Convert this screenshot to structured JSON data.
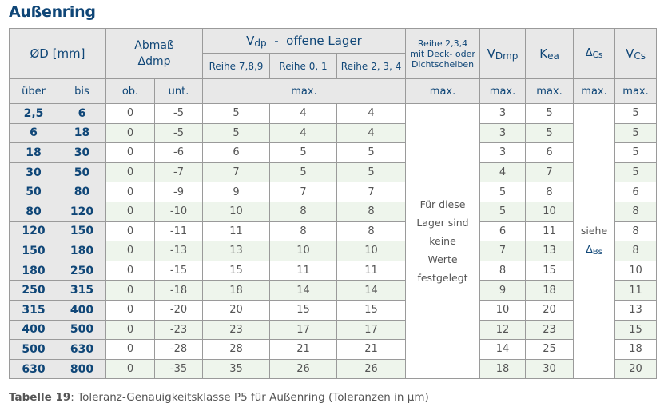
{
  "title": "Außenring",
  "header": {
    "od": "ØD  [mm]",
    "abmass": "Abmaß",
    "abmass_sym": "Δ",
    "abmass_sub": "dmp",
    "vdp": "V",
    "vdp_sub": "dp",
    "vdp_rest": "  -  offene Lager",
    "reihe789": "Reihe 7,8,9",
    "reihe01": "Reihe 0, 1",
    "reihe234": "Reihe 2, 3, 4",
    "deck_line1": "Reihe 2,3,4",
    "deck_line2": "mit Deck- oder",
    "deck_line3": "Dichtscheiben",
    "vdmp": "V",
    "vdmp_sub": "Dmp",
    "kea": "K",
    "kea_sub": "ea",
    "dcs": "Δ",
    "dcs_sub": "Cs",
    "vcs": "V",
    "vcs_sub": "Cs",
    "ueber": "über",
    "bis": "bis",
    "ob": "ob.",
    "unt": "unt.",
    "max": "max."
  },
  "merged": {
    "no_values": [
      "Für diese",
      "Lager sind",
      "keine",
      "Werte",
      "festgelegt"
    ],
    "siehe": "siehe",
    "siehe_sym": "Δ",
    "siehe_sub": "Bs"
  },
  "rows": [
    [
      "2,5",
      "6",
      "0",
      "-5",
      "5",
      "4",
      "4",
      "3",
      "5",
      "5"
    ],
    [
      "6",
      "18",
      "0",
      "-5",
      "5",
      "4",
      "4",
      "3",
      "5",
      "5"
    ],
    [
      "18",
      "30",
      "0",
      "-6",
      "6",
      "5",
      "5",
      "3",
      "6",
      "5"
    ],
    [
      "30",
      "50",
      "0",
      "-7",
      "7",
      "5",
      "5",
      "4",
      "7",
      "5"
    ],
    [
      "50",
      "80",
      "0",
      "-9",
      "9",
      "7",
      "7",
      "5",
      "8",
      "6"
    ],
    [
      "80",
      "120",
      "0",
      "-10",
      "10",
      "8",
      "8",
      "5",
      "10",
      "8"
    ],
    [
      "120",
      "150",
      "0",
      "-11",
      "11",
      "8",
      "8",
      "6",
      "11",
      "8"
    ],
    [
      "150",
      "180",
      "0",
      "-13",
      "13",
      "10",
      "10",
      "7",
      "13",
      "8"
    ],
    [
      "180",
      "250",
      "0",
      "-15",
      "15",
      "11",
      "11",
      "8",
      "15",
      "10"
    ],
    [
      "250",
      "315",
      "0",
      "-18",
      "18",
      "14",
      "14",
      "9",
      "18",
      "11"
    ],
    [
      "315",
      "400",
      "0",
      "-20",
      "20",
      "15",
      "15",
      "10",
      "20",
      "13"
    ],
    [
      "400",
      "500",
      "0",
      "-23",
      "23",
      "17",
      "17",
      "12",
      "23",
      "15"
    ],
    [
      "500",
      "630",
      "0",
      "-28",
      "28",
      "21",
      "21",
      "14",
      "25",
      "18"
    ],
    [
      "630",
      "800",
      "0",
      "-35",
      "35",
      "26",
      "26",
      "18",
      "30",
      "20"
    ]
  ],
  "caption": {
    "label": "Tabelle 19",
    "text": ": Toleranz-Genauigkeitsklasse P5 für Außenring (Toleranzen in µm)"
  },
  "colors": {
    "title": "#0f4677",
    "header_bg": "#e8e8e8",
    "alt_row": "#eef5ec",
    "border": "#9a9a9a"
  }
}
